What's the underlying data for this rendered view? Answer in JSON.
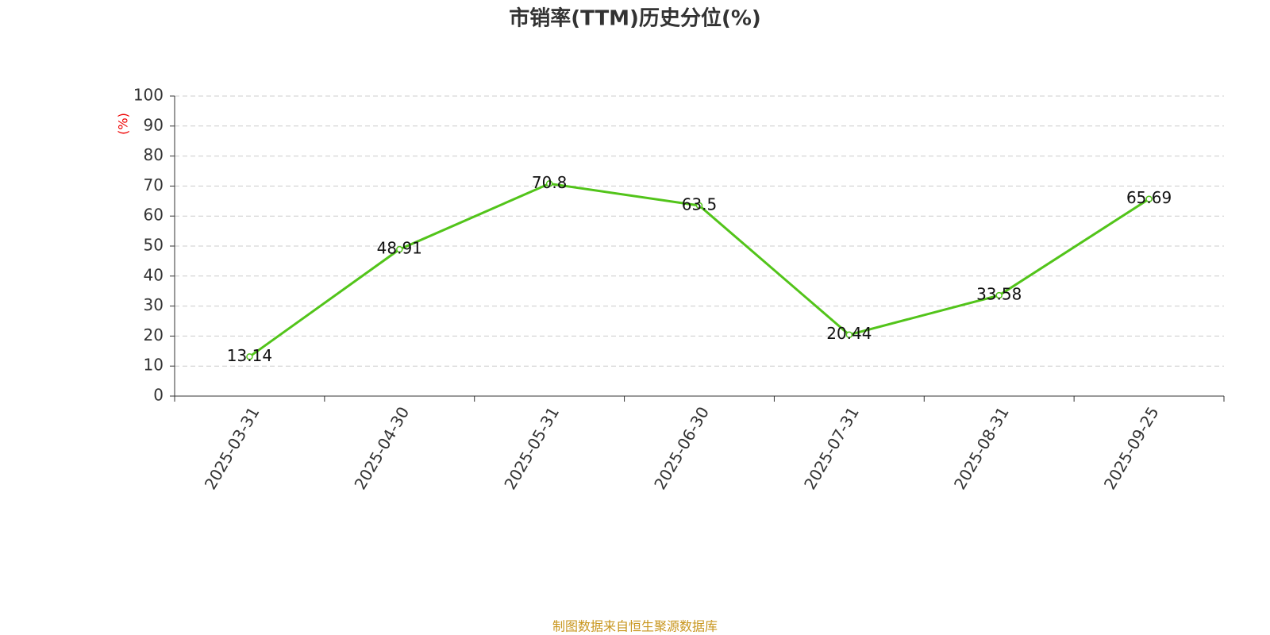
{
  "chart_data": {
    "type": "line",
    "title": "市销率(TTM)历史分位(%)",
    "y_label": "(%)",
    "source": "制图数据来自恒生聚源数据库",
    "categories": [
      "2025-03-31",
      "2025-04-30",
      "2025-05-31",
      "2025-06-30",
      "2025-07-31",
      "2025-08-31",
      "2025-09-25"
    ],
    "series": [
      {
        "name": "市销率(TTM)历史分位",
        "color": "#52c41a",
        "values": [
          13.14,
          48.91,
          70.8,
          63.5,
          20.44,
          33.58,
          65.69
        ]
      }
    ],
    "ylim": [
      0,
      100
    ],
    "yticks": [
      0,
      10,
      20,
      30,
      40,
      50,
      60,
      70,
      80,
      90,
      100
    ],
    "grid": true
  }
}
